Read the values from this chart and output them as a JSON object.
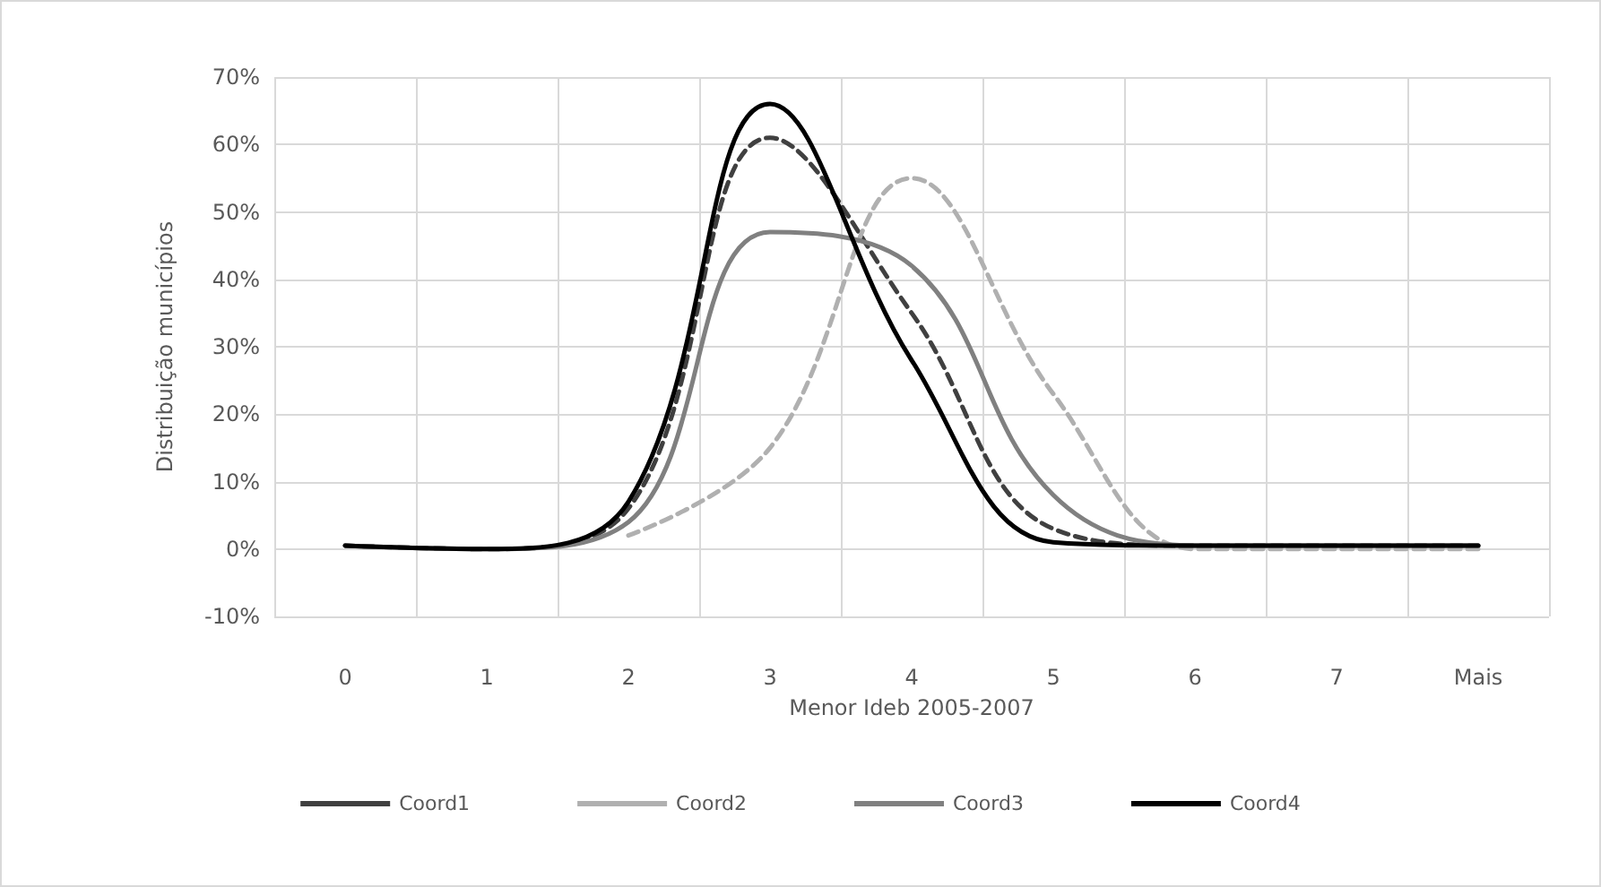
{
  "chart_data": {
    "type": "line",
    "xlabel": "Menor Ideb 2005-2007",
    "ylabel": "Distribuição municípios",
    "categories": [
      "0",
      "1",
      "2",
      "3",
      "4",
      "5",
      "6",
      "7",
      "Mais"
    ],
    "series": [
      {
        "name": "Coord1",
        "color": "#404040",
        "line_style": "dashed",
        "values": [
          0.5,
          0,
          6,
          61,
          35,
          3,
          0.5,
          0.5,
          0.5
        ]
      },
      {
        "name": "Coord2",
        "color": "#b0b0b0",
        "line_style": "dashed",
        "values": [
          null,
          null,
          2,
          15,
          55,
          23,
          0,
          0,
          0
        ]
      },
      {
        "name": "Coord3",
        "color": "#808080",
        "line_style": "solid",
        "values": [
          0.5,
          0,
          4,
          47,
          42,
          8,
          0.5,
          0.5,
          0.5
        ]
      },
      {
        "name": "Coord4",
        "color": "#000000",
        "line_style": "solid",
        "values": [
          0.5,
          0,
          7,
          66,
          28,
          1,
          0.5,
          0.5,
          0.5
        ]
      }
    ],
    "ylim": [
      -10,
      70
    ],
    "yticks": [
      {
        "value": -10,
        "label": "-10%"
      },
      {
        "value": 0,
        "label": "0%"
      },
      {
        "value": 10,
        "label": "10%"
      },
      {
        "value": 20,
        "label": "20%"
      },
      {
        "value": 30,
        "label": "30%"
      },
      {
        "value": 40,
        "label": "40%"
      },
      {
        "value": 50,
        "label": "50%"
      },
      {
        "value": 60,
        "label": "60%"
      },
      {
        "value": 70,
        "label": "70%"
      }
    ],
    "grid": true,
    "legend": "bottom",
    "marker": "none"
  }
}
